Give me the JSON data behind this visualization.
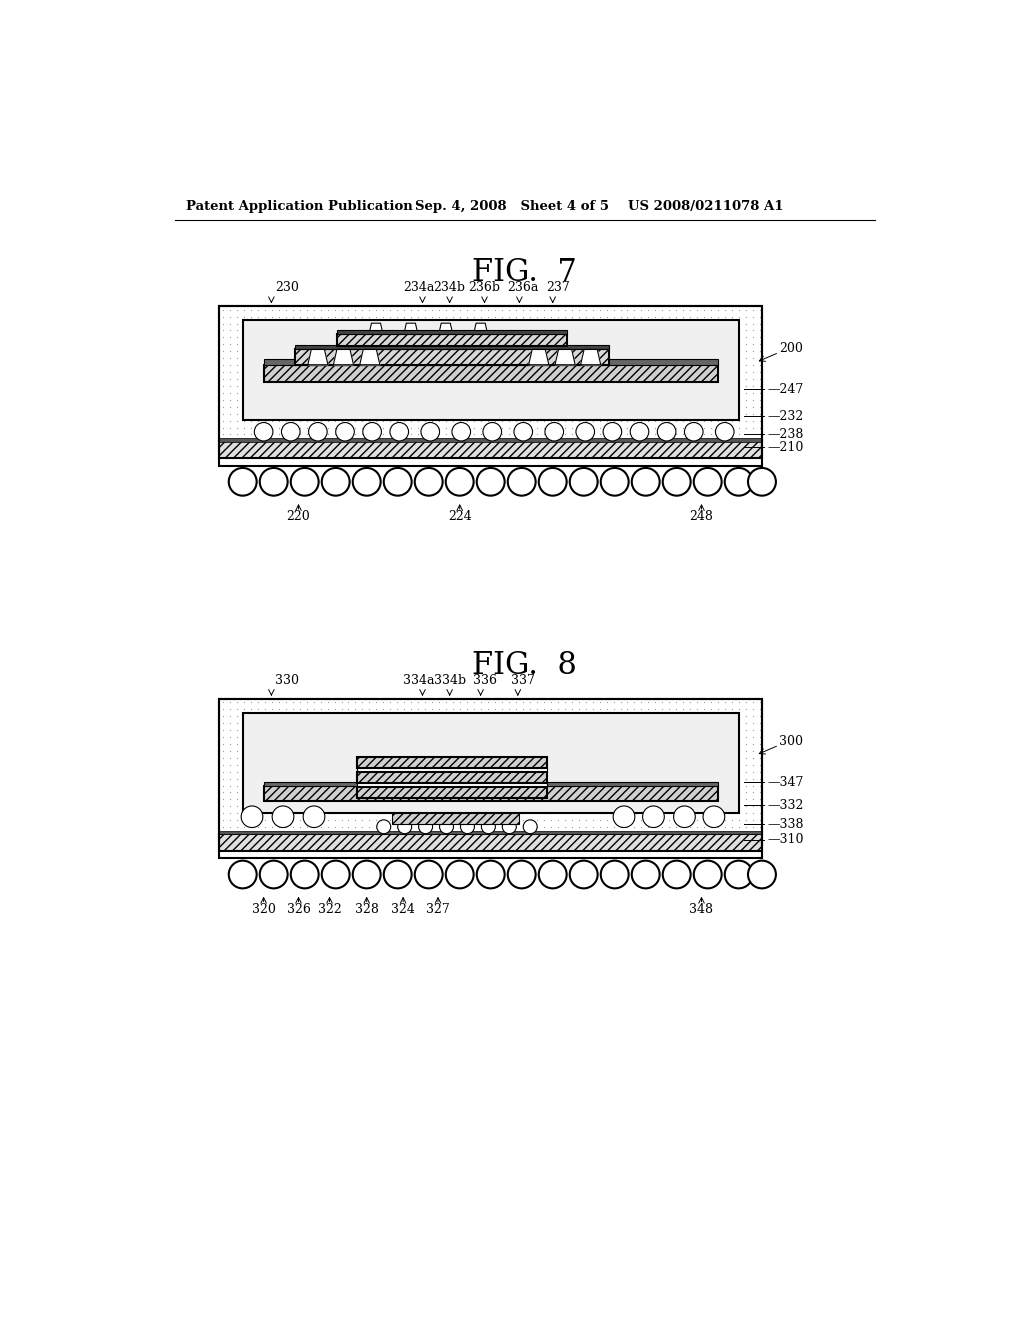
{
  "header_left": "Patent Application Publication",
  "header_mid": "Sep. 4, 2008   Sheet 4 of 5",
  "header_right": "US 2008/0211078 A1",
  "fig7_title": "FIG.  7",
  "fig8_title": "FIG.  8",
  "bg_color": "#ffffff",
  "lc": "#000000",
  "dot_color": "#888888",
  "hatch_gray": "#d0d0d0",
  "inner_fill": "#f0f0f0",
  "label_size": 9,
  "fig_title_size": 22
}
